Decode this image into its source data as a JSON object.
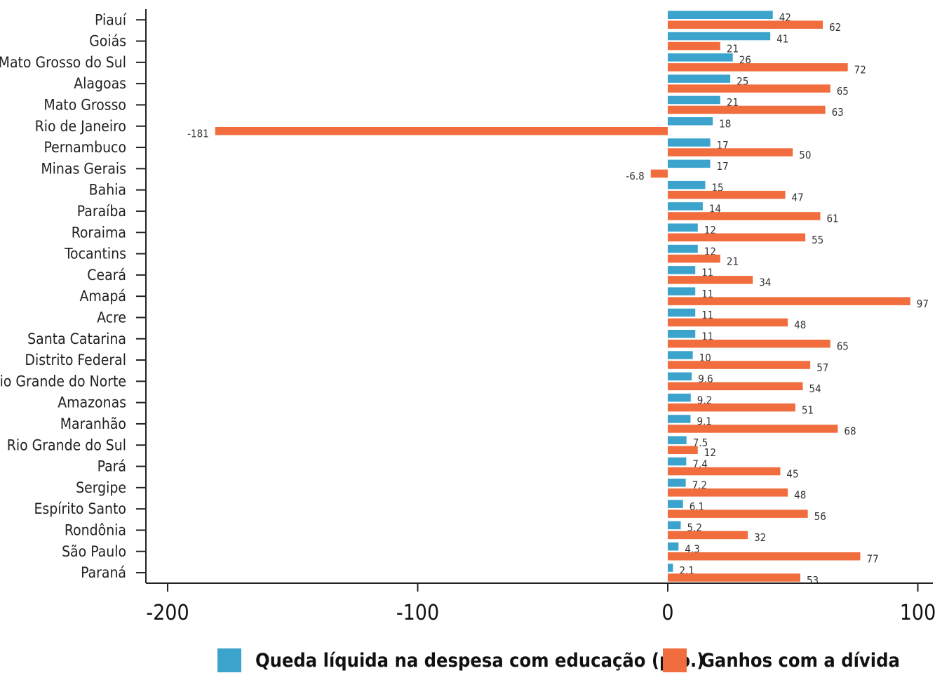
{
  "chart_data": {
    "type": "bar",
    "orientation": "horizontal",
    "categories": [
      "Piauí",
      "Goiás",
      "Mato Grosso do Sul",
      "Alagoas",
      "Mato Grosso",
      "Rio de Janeiro",
      "Pernambuco",
      "Minas Gerais",
      "Bahia",
      "Paraíba",
      "Roraima",
      "Tocantins",
      "Ceará",
      "Amapá",
      "Acre",
      "Santa Catarina",
      "Distrito Federal",
      "Rio Grande do Norte",
      "Amazonas",
      "Maranhão",
      "Rio Grande do Sul",
      "Pará",
      "Sergipe",
      "Espírito Santo",
      "Rondônia",
      "São Paulo",
      "Paraná"
    ],
    "series": [
      {
        "name": "Queda líquida na despesa com educação (p.p.)",
        "color": "#3ba3cc",
        "values": [
          42,
          41,
          26,
          25,
          21,
          18,
          17,
          17,
          15,
          14,
          12,
          12,
          11,
          11,
          11,
          11,
          10,
          9.6,
          9.2,
          9.1,
          7.5,
          7.4,
          7.2,
          6.1,
          5.2,
          4.3,
          2.1
        ],
        "labels": [
          "42",
          "41",
          "26",
          "25",
          "21",
          "18",
          "17",
          "17",
          "15",
          "14",
          "12",
          "12",
          "11",
          "11",
          "11",
          "11",
          "10",
          "9.6",
          "9.2",
          "9.1",
          "7.5",
          "7.4",
          "7.2",
          "6.1",
          "5.2",
          "4.3",
          "2.1"
        ]
      },
      {
        "name": "Ganhos com a dívida",
        "color": "#f26d3d",
        "values": [
          62,
          21,
          72,
          65,
          63,
          -181,
          50,
          -6.8,
          47,
          61,
          55,
          21,
          34,
          97,
          48,
          65,
          57,
          54,
          51,
          68,
          12,
          45,
          48,
          56,
          32,
          77,
          53
        ],
        "labels": [
          "62",
          "21",
          "72",
          "65",
          "63",
          "-181",
          "50",
          "-6.8",
          "47",
          "61",
          "55",
          "21",
          "34",
          "97",
          "48",
          "65",
          "57",
          "54",
          "51",
          "68",
          "12",
          "45",
          "48",
          "56",
          "32",
          "77",
          "53"
        ]
      }
    ],
    "xlim": [
      -200,
      100
    ],
    "x_ticks": [
      -200,
      -100,
      0,
      100
    ],
    "x_tick_labels": [
      "-200",
      "-100",
      "0",
      "100"
    ],
    "grid": false,
    "legend_position": "bottom"
  }
}
